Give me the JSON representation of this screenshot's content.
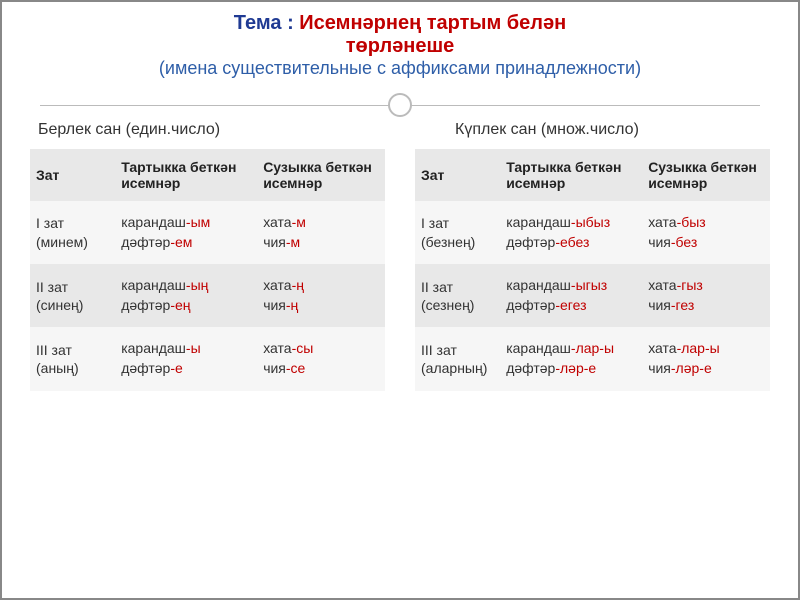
{
  "title": {
    "tema_label": "Тема",
    "colon": " : ",
    "main_line1": "Исемнəрнең тартым белəн",
    "main_line2": "төрлəнеше",
    "subtitle": "(имена существительные с аффиксами принадлежности)"
  },
  "columns": {
    "left": {
      "heading": "Берлек сан (един.число)",
      "headers": [
        "Зат",
        "Тартыкка беткəн исемнəр",
        "Сузыкка беткəн исемнəр"
      ],
      "rows": [
        {
          "label_main": "I зат",
          "label_sub": "(минем)",
          "col2": [
            {
              "base": "карандаш",
              "suffix": "-ым"
            },
            {
              "base": "дəфтəр",
              "suffix": "-ем"
            }
          ],
          "col3": [
            {
              "base": "хата",
              "suffix": "-м"
            },
            {
              "base": "чия",
              "suffix": "-м"
            }
          ]
        },
        {
          "label_main": "II зат",
          "label_sub": "(синең)",
          "col2": [
            {
              "base": "карандаш",
              "suffix": "-ың"
            },
            {
              "base": "дəфтəр",
              "suffix": "-ең"
            }
          ],
          "col3": [
            {
              "base": "хата",
              "suffix": "-ң"
            },
            {
              "base": "чия",
              "suffix": "-ң"
            }
          ]
        },
        {
          "label_main": "III зат",
          "label_sub": "(аның)",
          "col2": [
            {
              "base": "карандаш",
              "suffix": "-ы"
            },
            {
              "base": "дəфтəр",
              "suffix": "-е"
            }
          ],
          "col3": [
            {
              "base": "хата",
              "suffix": "-сы"
            },
            {
              "base": "чия",
              "suffix": "-се"
            }
          ]
        }
      ]
    },
    "right": {
      "heading": "Күплек сан (множ.число)",
      "headers": [
        "Зат",
        "Тартыкка беткəн исемнəр",
        "Сузыкка беткəн исемнəр"
      ],
      "rows": [
        {
          "label_main": "I зат",
          "label_sub": "(безнең)",
          "col2": [
            {
              "base": "карандаш",
              "suffix": "-ыбыз"
            },
            {
              "base": "дəфтəр",
              "suffix": "-ебез"
            }
          ],
          "col3": [
            {
              "base": "хата",
              "suffix": "-быз"
            },
            {
              "base": "чия",
              "suffix": "-без"
            }
          ]
        },
        {
          "label_main": "II зат",
          "label_sub": "(сезнең)",
          "col2": [
            {
              "base": "карандаш",
              "suffix": "-ыгыз"
            },
            {
              "base": "дəфтəр",
              "suffix": "-егез"
            }
          ],
          "col3": [
            {
              "base": "хата",
              "suffix": "-гыз"
            },
            {
              "base": "чия",
              "suffix": "-гез"
            }
          ]
        },
        {
          "label_main": "III зат",
          "label_sub": "(аларның)",
          "col2": [
            {
              "base": "карандаш",
              "suffix": "-лар-ы"
            },
            {
              "base": "дəфтəр",
              "suffix": "-лəр-е"
            }
          ],
          "col3": [
            {
              "base": "хата",
              "suffix": "-лар-ы"
            },
            {
              "base": "чия",
              "suffix": "-лəр-е"
            }
          ]
        }
      ]
    }
  },
  "colors": {
    "title_blue": "#1f3a93",
    "title_red": "#c00000",
    "subtitle_blue": "#2e5ea8",
    "suffix_red": "#c00000",
    "header_bg": "#e8e8e8",
    "row_light": "#f6f6f6"
  }
}
